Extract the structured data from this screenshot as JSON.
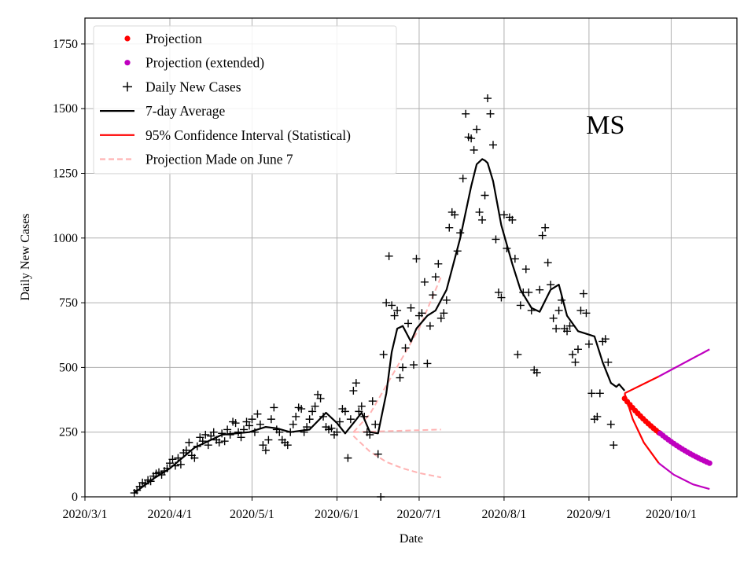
{
  "chart_data": {
    "type": "scatter",
    "title": "",
    "annotation": "MS",
    "annotation_pos": {
      "day": 190,
      "value": 1440
    },
    "xlabel": "Date",
    "ylabel": "Daily New Cases",
    "xlim_days_from_2020_03_01": [
      0,
      238
    ],
    "ylim": [
      0,
      1850
    ],
    "grid": true,
    "legend_placement": "top-left",
    "x_ticks": [
      {
        "label": "2020/3/1",
        "day": 0
      },
      {
        "label": "2020/4/1",
        "day": 31
      },
      {
        "label": "2020/5/1",
        "day": 61
      },
      {
        "label": "2020/6/1",
        "day": 92
      },
      {
        "label": "2020/7/1",
        "day": 122
      },
      {
        "label": "2020/8/1",
        "day": 153
      },
      {
        "label": "2020/9/1",
        "day": 184
      },
      {
        "label": "2020/10/1",
        "day": 214
      }
    ],
    "y_ticks": [
      0,
      250,
      500,
      750,
      1000,
      1250,
      1500,
      1750
    ],
    "legend": [
      {
        "label": "Projection",
        "kind": "dot",
        "color": "#ff0000"
      },
      {
        "label": "Projection (extended)",
        "kind": "dot",
        "color": "#bf00bf"
      },
      {
        "label": "Daily New Cases",
        "kind": "plus",
        "color": "#000000"
      },
      {
        "label": "7-day Average",
        "kind": "line",
        "color": "#000000"
      },
      {
        "label": "95% Confidence Interval (Statistical)",
        "kind": "line",
        "color": "#ff0000"
      },
      {
        "label": "Projection Made on June 7",
        "kind": "dash",
        "color": "#ffb3b3"
      }
    ],
    "daily_new_cases": {
      "start_day": 18,
      "values": [
        15,
        25,
        40,
        55,
        50,
        65,
        60,
        80,
        90,
        95,
        85,
        100,
        110,
        130,
        145,
        120,
        150,
        125,
        170,
        180,
        210,
        160,
        150,
        195,
        230,
        215,
        240,
        200,
        235,
        250,
        220,
        210,
        245,
        215,
        260,
        240,
        290,
        285,
        250,
        230,
        260,
        290,
        275,
        300,
        250,
        320,
        280,
        200,
        180,
        220,
        300,
        345,
        260,
        250,
        220,
        210,
        200,
        250,
        280,
        310,
        345,
        340,
        250,
        270,
        300,
        330,
        350,
        395,
        380,
        310,
        270,
        260,
        265,
        240,
        250,
        290,
        340,
        330,
        150,
        300,
        410,
        440,
        330,
        350,
        310,
        250,
        240,
        370,
        280,
        165,
        0,
        550,
        750,
        930,
        740,
        700,
        720,
        460,
        500,
        575,
        670,
        730,
        510,
        920,
        700,
        710,
        830,
        515,
        660,
        780,
        850,
        900,
        690,
        710,
        760,
        1040,
        1100,
        1090,
        950,
        1020,
        1230,
        1480,
        1390,
        1385,
        1340,
        1420,
        1100,
        1070,
        1165,
        1540,
        1480,
        1360,
        995,
        790,
        770,
        1090,
        960,
        1080,
        1070,
        920,
        550,
        740,
        790,
        880,
        790,
        720,
        490,
        480,
        800,
        1010,
        1040,
        905,
        820,
        690,
        650,
        720,
        760,
        650,
        640,
        660,
        550,
        520,
        570,
        720,
        785,
        710,
        590,
        400,
        300,
        310,
        400,
        600,
        610,
        520,
        280,
        200
      ]
    },
    "seven_day_average": [
      [
        18,
        15
      ],
      [
        25,
        70
      ],
      [
        31,
        110
      ],
      [
        40,
        190
      ],
      [
        50,
        240
      ],
      [
        60,
        250
      ],
      [
        66,
        270
      ],
      [
        70,
        265
      ],
      [
        75,
        250
      ],
      [
        82,
        260
      ],
      [
        88,
        325
      ],
      [
        92,
        285
      ],
      [
        95,
        245
      ],
      [
        98,
        285
      ],
      [
        101,
        325
      ],
      [
        104,
        250
      ],
      [
        107,
        245
      ],
      [
        110,
        400
      ],
      [
        112,
        560
      ],
      [
        114,
        650
      ],
      [
        116,
        660
      ],
      [
        119,
        600
      ],
      [
        121,
        650
      ],
      [
        125,
        700
      ],
      [
        128,
        720
      ],
      [
        132,
        800
      ],
      [
        137,
        1000
      ],
      [
        141,
        1200
      ],
      [
        143,
        1285
      ],
      [
        145,
        1305
      ],
      [
        146,
        1300
      ],
      [
        147,
        1290
      ],
      [
        149,
        1220
      ],
      [
        152,
        1050
      ],
      [
        156,
        900
      ],
      [
        159,
        800
      ],
      [
        163,
        730
      ],
      [
        166,
        715
      ],
      [
        170,
        800
      ],
      [
        173,
        820
      ],
      [
        176,
        700
      ],
      [
        180,
        640
      ],
      [
        183,
        630
      ],
      [
        186,
        620
      ],
      [
        189,
        520
      ],
      [
        192,
        440
      ],
      [
        194,
        425
      ],
      [
        195,
        435
      ],
      [
        197,
        410
      ]
    ],
    "projection": {
      "day_start": 197,
      "day_end": 209.5,
      "value_start": 380,
      "value_end": 248,
      "color": "#ff0000"
    },
    "projection_extended": {
      "day_start": 210,
      "day_end": 228,
      "value_start": 245,
      "value_end": 130,
      "color": "#bf00bf"
    },
    "ci_upper": [
      [
        197,
        400
      ],
      [
        209.5,
        465
      ],
      [
        228,
        570
      ]
    ],
    "ci_lower": [
      [
        197,
        400
      ],
      [
        200,
        300
      ],
      [
        204,
        210
      ],
      [
        209.5,
        130
      ],
      [
        215,
        85
      ],
      [
        222,
        48
      ],
      [
        228,
        30
      ]
    ],
    "june7_projection": {
      "center": [
        [
          98,
          250
        ],
        [
          130,
          260
        ]
      ],
      "upper": [
        [
          98,
          250
        ],
        [
          104,
          320
        ],
        [
          110,
          430
        ],
        [
          116,
          540
        ],
        [
          122,
          650
        ],
        [
          130,
          850
        ]
      ],
      "lower": [
        [
          98,
          235
        ],
        [
          104,
          175
        ],
        [
          110,
          135
        ],
        [
          116,
          110
        ],
        [
          122,
          92
        ],
        [
          130,
          75
        ]
      ]
    }
  }
}
